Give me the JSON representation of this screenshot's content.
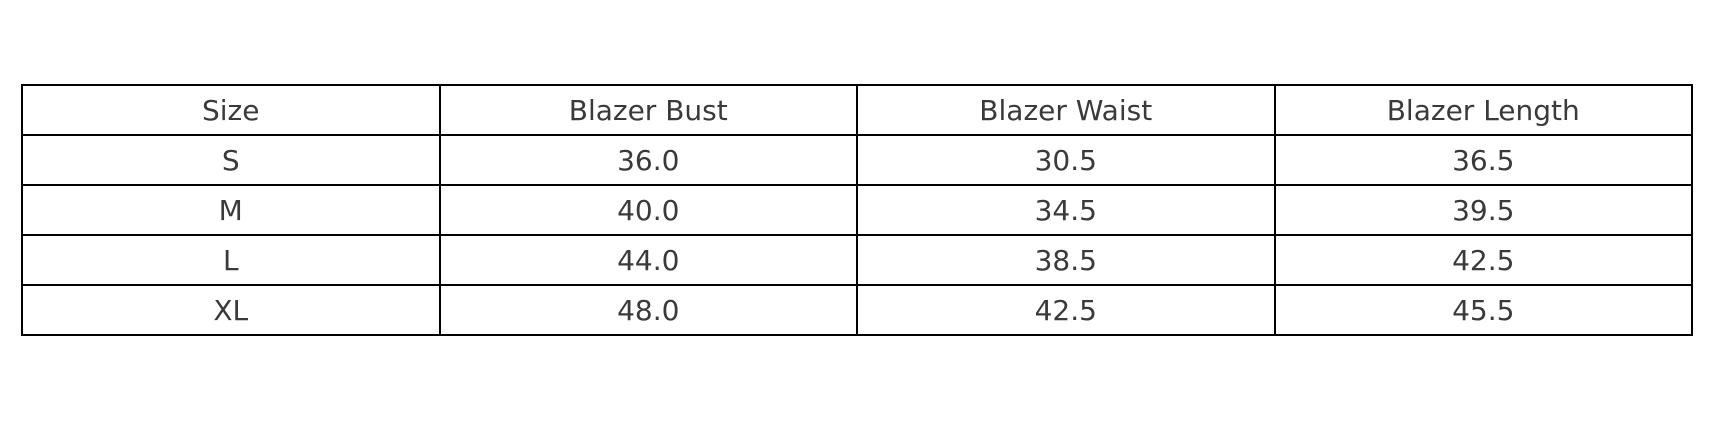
{
  "chart_data": {
    "type": "table",
    "title": "",
    "columns": [
      "Size",
      "Blazer Bust",
      "Blazer Waist",
      "Blazer Length"
    ],
    "rows": [
      [
        "S",
        "36.0",
        "30.5",
        "36.5"
      ],
      [
        "M",
        "40.0",
        "34.5",
        "39.5"
      ],
      [
        "L",
        "44.0",
        "38.5",
        "42.5"
      ],
      [
        "XL",
        "48.0",
        "42.5",
        "45.5"
      ]
    ]
  },
  "colors": {
    "background": "#ffffff",
    "border": "#000000",
    "text": "#3a3a3a"
  }
}
